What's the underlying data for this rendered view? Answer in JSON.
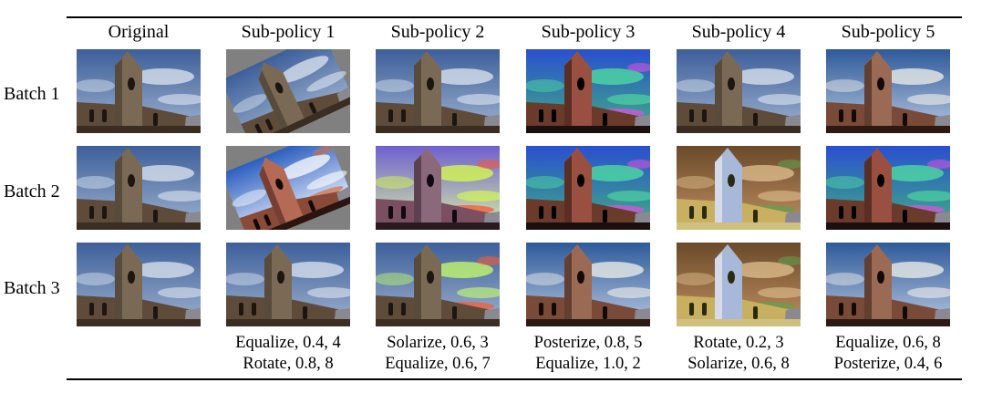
{
  "columns": [
    "Original",
    "Sub-policy 1",
    "Sub-policy 2",
    "Sub-policy 3",
    "Sub-policy 4",
    "Sub-policy 5"
  ],
  "rows": [
    "Batch 1",
    "Batch 2",
    "Batch 3"
  ],
  "captions": [
    {
      "line1": "",
      "line2": ""
    },
    {
      "line1": "Equalize, 0.4, 4",
      "line2": "Rotate, 0.8, 8"
    },
    {
      "line1": "Solarize, 0.6, 3",
      "line2": "Equalize, 0.6, 7"
    },
    {
      "line1": "Posterize, 0.8, 5",
      "line2": "Equalize, 1.0, 2"
    },
    {
      "line1": "Rotate, 0.2, 3",
      "line2": "Solarize, 0.6, 8"
    },
    {
      "line1": "Equalize, 0.6, 8",
      "line2": "Posterize, 0.4, 6"
    }
  ],
  "image_styles": [
    [
      "original",
      "rotated-left",
      "original",
      "posterized",
      "original",
      "equalized"
    ],
    [
      "original",
      "rotated-right-equalized",
      "solarized-equalized",
      "posterized",
      "solarized-sepia",
      "posterized"
    ],
    [
      "original",
      "original",
      "solarized",
      "equalized",
      "solarized-sepia",
      "equalized"
    ]
  ]
}
